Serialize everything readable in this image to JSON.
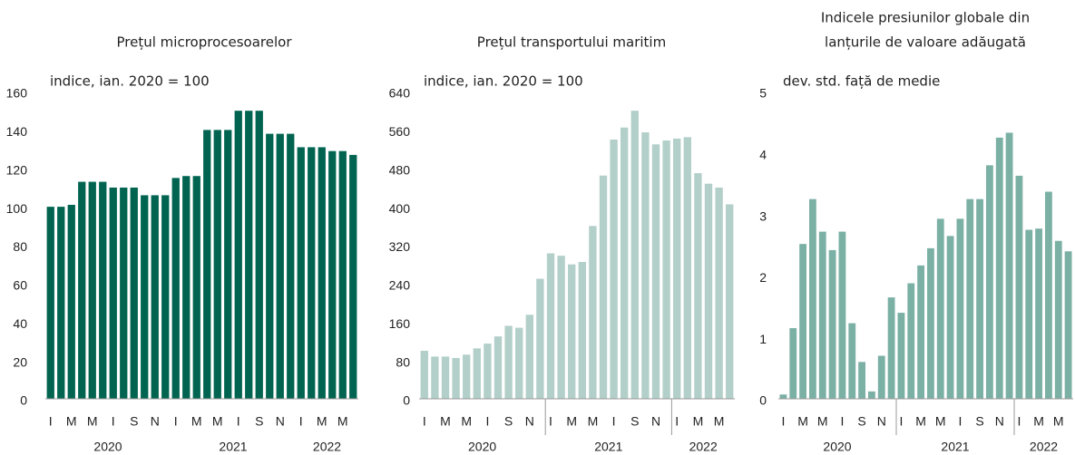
{
  "chart_data": [
    {
      "type": "bar",
      "title": [
        "Prețul microprocesoarelor"
      ],
      "unit_label": "indice, ian. 2020 = 100",
      "color": "#006450",
      "categories": [
        "I",
        null,
        "M",
        null,
        "M",
        null,
        "I",
        null,
        "S",
        null,
        "N",
        null,
        "I",
        null,
        "M",
        null,
        "M",
        null,
        "I",
        null,
        "S",
        null,
        "N",
        null,
        "I",
        null,
        "M",
        null,
        "M",
        null
      ],
      "years": [
        "2020",
        "2021",
        "2022"
      ],
      "year_separators": false,
      "values": [
        100,
        100,
        101,
        113,
        113,
        113,
        110,
        110,
        110,
        106,
        106,
        106,
        115,
        116,
        116,
        140,
        140,
        140,
        150,
        150,
        150,
        138,
        138,
        138,
        131,
        131,
        131,
        129,
        129,
        127
      ],
      "ylim": [
        0,
        160
      ],
      "yticks": [
        0,
        20,
        40,
        60,
        80,
        100,
        120,
        140,
        160
      ]
    },
    {
      "type": "bar",
      "title": [
        "Prețul transportului maritim"
      ],
      "unit_label": "indice, ian. 2020 = 100",
      "color": "#b3cfc9",
      "categories": [
        "I",
        null,
        "M",
        null,
        "M",
        null,
        "I",
        null,
        "S",
        null,
        "N",
        null,
        "I",
        null,
        "M",
        null,
        "M",
        null,
        "I",
        null,
        "S",
        null,
        "N",
        null,
        "I",
        null,
        "M",
        null,
        "M",
        null
      ],
      "years": [
        "2020",
        "2021",
        "2022"
      ],
      "year_separators": true,
      "values": [
        100,
        88,
        88,
        85,
        92,
        105,
        115,
        130,
        152,
        148,
        175,
        250,
        303,
        298,
        280,
        285,
        360,
        465,
        540,
        565,
        600,
        555,
        530,
        538,
        542,
        545,
        470,
        448,
        440,
        405
      ],
      "ylim": [
        0,
        640
      ],
      "yticks": [
        0,
        80,
        160,
        240,
        320,
        400,
        480,
        560,
        640
      ]
    },
    {
      "type": "bar",
      "title": [
        "Indicele presiunilor globale din",
        "lanțurile de valoare adăugată"
      ],
      "unit_label": "dev. std. față de medie",
      "color": "#7bb0a5",
      "categories": [
        "I",
        null,
        "M",
        null,
        "M",
        null,
        "I",
        null,
        "S",
        null,
        "N",
        null,
        "I",
        null,
        "M",
        null,
        "M",
        null,
        "I",
        null,
        "S",
        null,
        "N",
        null,
        "I",
        null,
        "M",
        null,
        "M",
        null
      ],
      "years": [
        "2020",
        "2021",
        "2022"
      ],
      "year_separators": true,
      "values": [
        0.07,
        1.15,
        2.52,
        3.25,
        2.72,
        2.42,
        2.72,
        1.23,
        0.6,
        0.12,
        0.7,
        1.65,
        1.4,
        1.88,
        2.17,
        2.45,
        2.93,
        2.65,
        2.93,
        3.25,
        3.25,
        3.8,
        4.25,
        4.33,
        3.63,
        2.75,
        2.77,
        3.37,
        2.57,
        2.4
      ],
      "ylim": [
        0,
        5
      ],
      "yticks": [
        0,
        1,
        2,
        3,
        4,
        5
      ]
    }
  ]
}
